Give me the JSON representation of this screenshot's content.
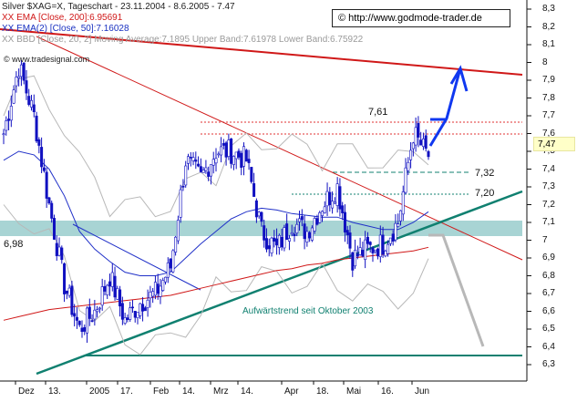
{
  "header": {
    "line1": "Silver $XAG=X, Tageschart - 23.11.2004 - 8.6.2005 - 7.47",
    "line2": "XX EMA [Close, 200]:6.95691",
    "line3": "XX EMA(2) [Close, 50]:7.16028",
    "line4": "XX BBD [Close, 20, 2] Moving Average:7.1895 Upper Band:7.61978 Lower Band:6.75922",
    "line5": "© www.tradesignal.com"
  },
  "url_box": {
    "copyright": "©",
    "url": "http://www.godmode-trader.de"
  },
  "last_price_label": "7,47",
  "annotations": {
    "level_761": "7,61",
    "level_732": "7,32",
    "level_720": "7,20",
    "level_698": "6,98",
    "trend_text": "Aufwärtstrend seit Oktober 2003"
  },
  "colors": {
    "price": "#1010c0",
    "ema200": "#d01818",
    "ema50": "#2030c8",
    "bollinger": "#b8b8b8",
    "trendline": "#108070",
    "zone": "#a8d4d4",
    "arrow_up": "#1038f0",
    "arrow_down": "#b8b8b8"
  },
  "chart_data": {
    "type": "line",
    "title": "Silver $XAG=X, Tageschart - 23.11.2004 - 8.6.2005 - 7.47",
    "xlabel": "",
    "ylabel": "",
    "ylim": [
      6.25,
      8.35
    ],
    "grid": false,
    "y_ticks": [
      "8,3",
      "8,2",
      "8,1",
      "8",
      "7,9",
      "7,8",
      "7,7",
      "7,6",
      "7,5",
      "7,4",
      "7,3",
      "7,2",
      "7,1",
      "7",
      "6,9",
      "6,8",
      "6,7",
      "6,6",
      "6,5",
      "6,4",
      "6,3"
    ],
    "x_ticks": [
      "Dez",
      "13.",
      "2005",
      "17.",
      "Feb",
      "14.",
      "Mrz",
      "14.",
      "Apr",
      "18.",
      "Mai",
      "16.",
      "Jun"
    ],
    "x": [
      "2004-11-23",
      "2004-12-01",
      "2004-12-06",
      "2004-12-13",
      "2004-12-20",
      "2004-12-27",
      "2005-01-03",
      "2005-01-10",
      "2005-01-17",
      "2005-01-24",
      "2005-01-31",
      "2005-02-07",
      "2005-02-14",
      "2005-02-21",
      "2005-02-28",
      "2005-03-07",
      "2005-03-14",
      "2005-03-21",
      "2005-03-28",
      "2005-04-04",
      "2005-04-11",
      "2005-04-18",
      "2005-04-25",
      "2005-05-02",
      "2005-05-09",
      "2005-05-16",
      "2005-05-23",
      "2005-05-30",
      "2005-06-08"
    ],
    "series": [
      {
        "values": [
          7.6,
          7.98,
          7.7,
          7.2,
          6.75,
          6.5,
          6.6,
          6.8,
          6.55,
          6.65,
          6.7,
          6.85,
          7.45,
          7.35,
          7.5,
          7.5,
          7.45,
          7.05,
          6.95,
          7.1,
          7.05,
          7.2,
          7.3,
          6.9,
          6.95,
          6.98,
          7.1,
          7.6,
          7.47
        ]
      },
      {
        "values": [
          6.55,
          6.57,
          6.59,
          6.61,
          6.62,
          6.63,
          6.64,
          6.65,
          6.66,
          6.67,
          6.68,
          6.69,
          6.71,
          6.73,
          6.75,
          6.77,
          6.79,
          6.81,
          6.83,
          6.84,
          6.86,
          6.87,
          6.89,
          6.9,
          6.91,
          6.92,
          6.93,
          6.94,
          6.96
        ]
      },
      {
        "values": [
          7.45,
          7.5,
          7.48,
          7.4,
          7.25,
          7.05,
          6.95,
          6.88,
          6.82,
          6.8,
          6.8,
          6.82,
          6.9,
          6.98,
          7.05,
          7.12,
          7.16,
          7.18,
          7.17,
          7.15,
          7.14,
          7.13,
          7.13,
          7.1,
          7.08,
          7.06,
          7.06,
          7.1,
          7.16
        ]
      }
    ],
    "levels": [
      7.61,
      7.55,
      7.32,
      7.2
    ],
    "support_zone": [
      6.98,
      7.04
    ],
    "trendline_label": "Aufwärtstrend seit Oktober 2003"
  }
}
